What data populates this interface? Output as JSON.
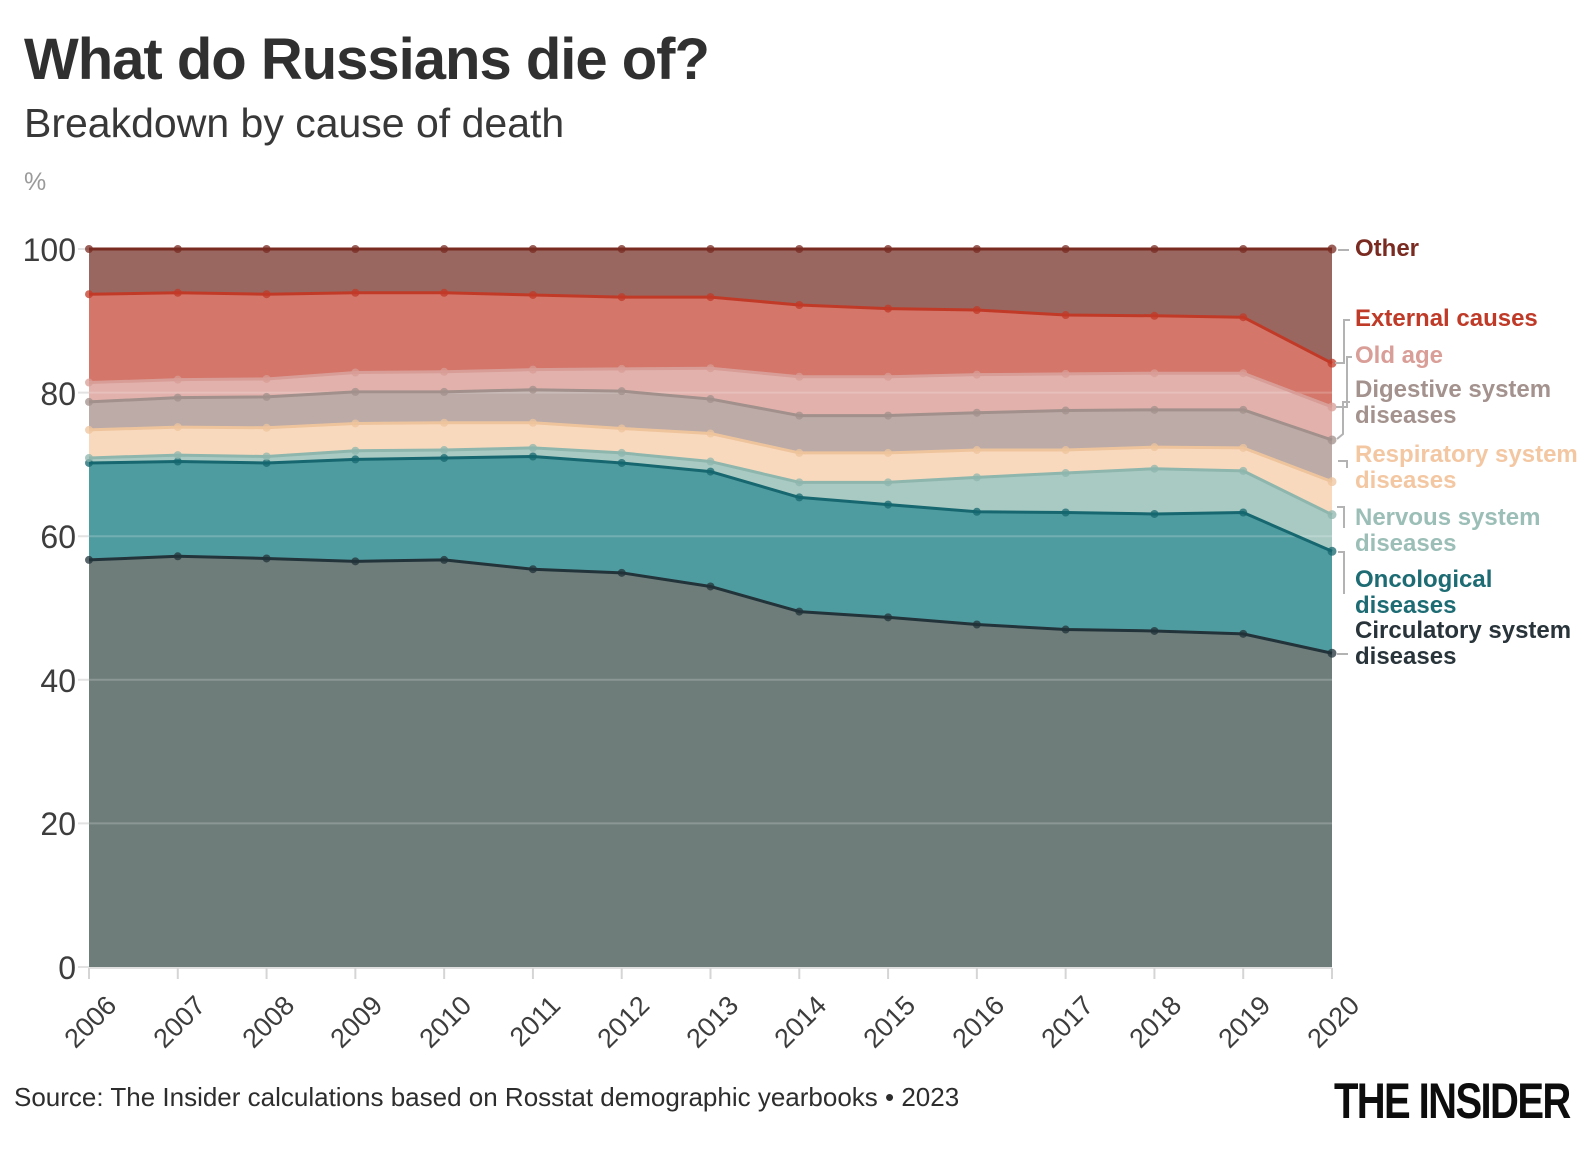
{
  "header": {
    "title": "What do Russians die of?",
    "subtitle": "Breakdown by cause of death",
    "unit_label": "%"
  },
  "chart_data": {
    "type": "area",
    "stacked": true,
    "title": "What do Russians die of?",
    "subtitle": "Breakdown by cause of death",
    "ylabel": "%",
    "xlabel": "",
    "grid": true,
    "legend_position": "right",
    "ylim": [
      0,
      100
    ],
    "yticks": [
      0,
      20,
      40,
      60,
      80,
      100
    ],
    "x": [
      2006,
      2007,
      2008,
      2009,
      2010,
      2011,
      2012,
      2013,
      2014,
      2015,
      2016,
      2017,
      2018,
      2019,
      2020
    ],
    "series": [
      {
        "name": "Circulatory system diseases",
        "fill": "#6e7d7a",
        "line": "#22333a",
        "values": [
          56.7,
          57.2,
          56.9,
          56.5,
          56.7,
          55.4,
          54.9,
          53.0,
          49.5,
          48.7,
          47.7,
          47.0,
          46.8,
          46.4,
          43.7
        ]
      },
      {
        "name": "Oncological diseases",
        "fill": "#4f9ca0",
        "line": "#16676f",
        "values": [
          13.5,
          13.2,
          13.3,
          14.2,
          14.2,
          15.7,
          15.3,
          16.0,
          15.9,
          15.7,
          15.7,
          16.3,
          16.3,
          16.9,
          14.2
        ]
      },
      {
        "name": "Nervous system diseases",
        "fill": "#a9cac3",
        "line": "#8eb6ad",
        "values": [
          0.7,
          0.9,
          0.9,
          1.2,
          1.1,
          1.2,
          1.4,
          1.4,
          2.1,
          3.1,
          4.8,
          5.5,
          6.3,
          5.8,
          5.1
        ]
      },
      {
        "name": "Respiratory system diseases",
        "fill": "#f9d9bd",
        "line": "#eec49d",
        "values": [
          3.9,
          3.9,
          4.0,
          3.8,
          3.8,
          3.5,
          3.4,
          3.9,
          4.1,
          4.1,
          3.8,
          3.2,
          3.0,
          3.2,
          4.6
        ]
      },
      {
        "name": "Digestive system diseases",
        "fill": "#bcaba7",
        "line": "#a1908b",
        "values": [
          3.9,
          4.1,
          4.3,
          4.4,
          4.3,
          4.6,
          5.2,
          4.8,
          5.2,
          5.2,
          5.2,
          5.5,
          5.2,
          5.3,
          5.8
        ]
      },
      {
        "name": "Old age",
        "fill": "#e2b1ac",
        "line": "#d89d96",
        "values": [
          2.7,
          2.5,
          2.5,
          2.7,
          2.8,
          2.8,
          3.1,
          4.3,
          5.4,
          5.4,
          5.3,
          5.1,
          5.1,
          5.1,
          4.6
        ]
      },
      {
        "name": "External causes",
        "fill": "#d4766a",
        "line": "#c13a28",
        "values": [
          12.3,
          12.1,
          11.8,
          11.1,
          11.0,
          10.4,
          10.0,
          9.9,
          10.0,
          9.5,
          9.0,
          8.2,
          8.0,
          7.8,
          6.1
        ]
      },
      {
        "name": "Other",
        "fill": "#99675f",
        "line": "#7a2b21",
        "values": [
          6.3,
          6.1,
          6.3,
          6.1,
          6.1,
          6.4,
          6.7,
          6.7,
          7.8,
          8.3,
          8.5,
          9.2,
          9.3,
          9.5,
          15.9
        ]
      }
    ]
  },
  "legend": {
    "items": [
      {
        "label": "Other",
        "color": "#7a2b21"
      },
      {
        "label": "External causes",
        "color": "#c03a28"
      },
      {
        "label": "Old age",
        "color": "#d99e97"
      },
      {
        "label": "Digestive system diseases",
        "color": "#a3928d"
      },
      {
        "label": "Respiratory system diseases",
        "color": "#f3c7a2"
      },
      {
        "label": "Nervous system diseases",
        "color": "#9bbeb6"
      },
      {
        "label": "Oncological diseases",
        "color": "#1d6b73"
      },
      {
        "label": "Circulatory system diseases",
        "color": "#28343a"
      }
    ]
  },
  "footer": {
    "source": "Source: The Insider calculations based on Rosstat demographic yearbooks • 2023",
    "brand": "THE INSIDER"
  }
}
